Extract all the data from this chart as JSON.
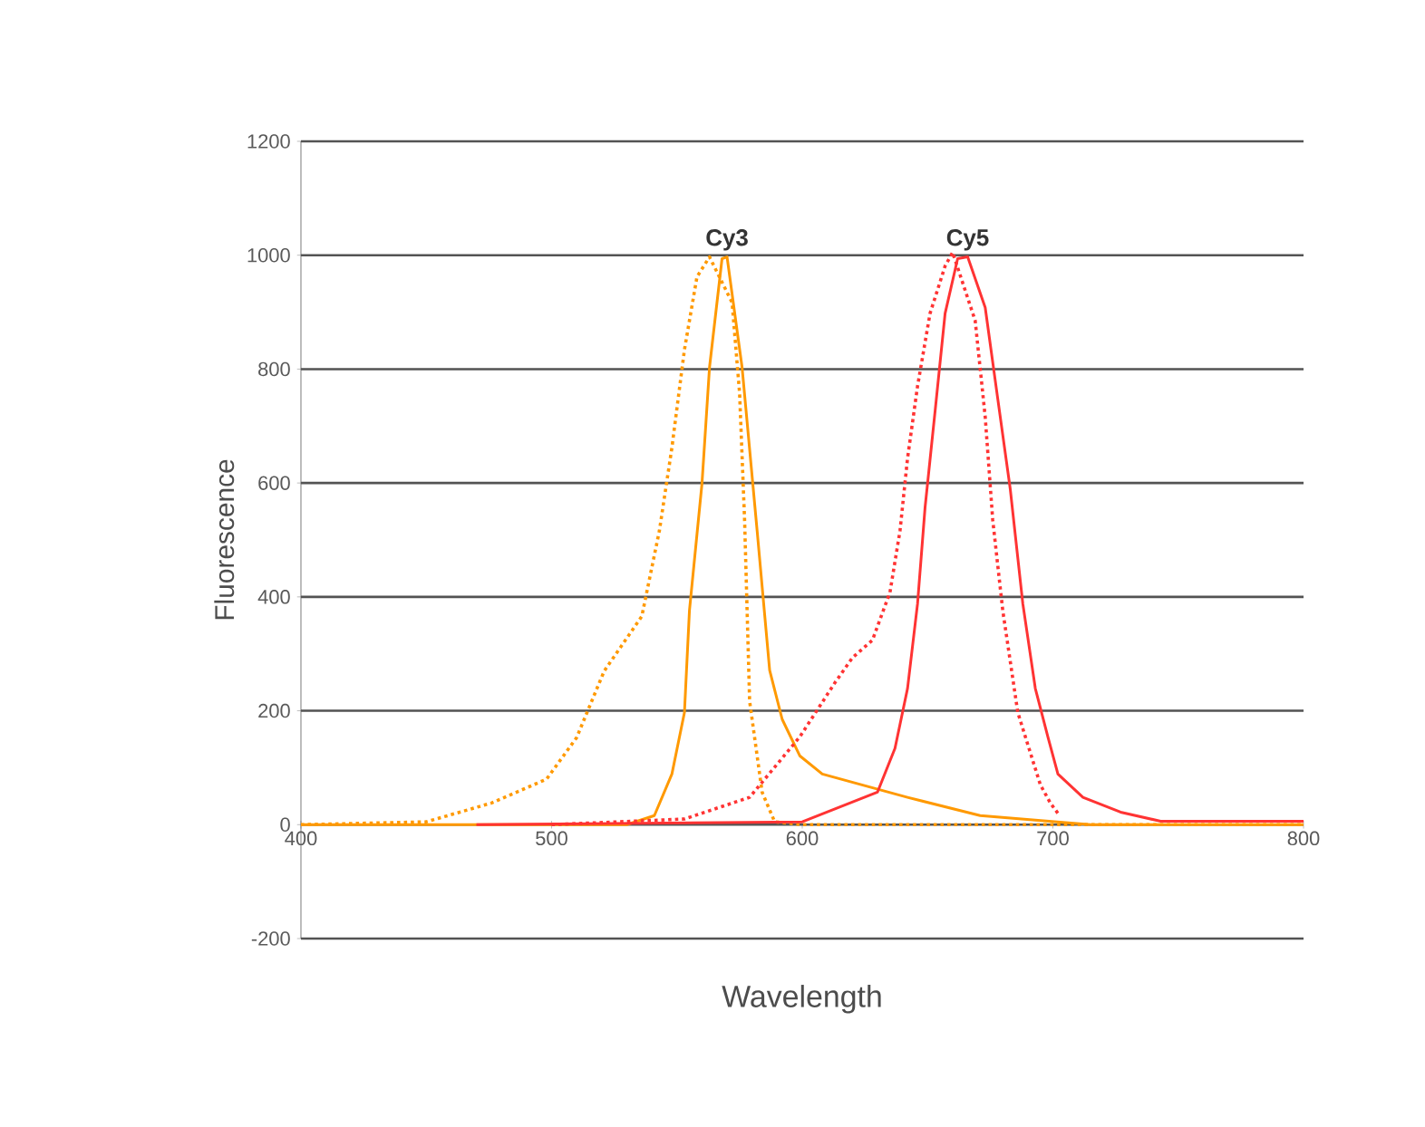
{
  "chart_data": {
    "type": "line",
    "xlabel": "Wavelength",
    "ylabel": "Fluorescence",
    "xlim": [
      400,
      800
    ],
    "xticks": [
      400,
      500,
      600,
      700,
      800
    ],
    "ylim": [
      -200,
      1200
    ],
    "yticks": [
      -200,
      0,
      200,
      400,
      600,
      800,
      1000,
      1200
    ],
    "grid": "y",
    "marker": "none",
    "annotations": [
      "Cy3",
      "Cy5"
    ],
    "series": [
      {
        "color": "#ff9900",
        "line_style": "dotted",
        "x": [
          400,
          450,
          476,
          498,
          510,
          521,
          536,
          543,
          548,
          553,
          558,
          563,
          572,
          575,
          577,
          579,
          584,
          589,
          600,
          800
        ],
        "values": [
          0,
          5,
          38,
          80,
          153,
          270,
          366,
          516,
          662,
          834,
          962,
          997,
          917,
          758,
          535,
          217,
          57,
          5,
          0,
          0
        ]
      },
      {
        "color": "#ff9900",
        "line_style": "solid",
        "x": [
          400,
          530,
          541,
          548,
          553,
          555,
          560,
          563,
          568,
          570,
          576,
          582,
          587,
          592,
          599,
          608,
          642,
          671,
          715,
          800
        ],
        "values": [
          0,
          0,
          16,
          89,
          197,
          376,
          599,
          803,
          994,
          997,
          803,
          516,
          271,
          185,
          121,
          89,
          48,
          16,
          0,
          0
        ]
      },
      {
        "color": "#ff3333",
        "line_style": "dotted",
        "x": [
          500,
          553,
          579,
          599,
          613,
          620,
          628,
          635,
          639,
          642,
          646,
          651,
          657,
          660,
          669,
          673,
          676,
          680,
          686,
          695,
          699,
          702
        ],
        "values": [
          0,
          10,
          48,
          154,
          249,
          293,
          324,
          408,
          516,
          643,
          770,
          898,
          981,
          1005,
          885,
          716,
          535,
          376,
          197,
          70,
          38,
          20
        ]
      },
      {
        "color": "#ff3333",
        "line_style": "solid",
        "x": [
          470,
          600,
          630,
          637,
          642,
          646,
          649,
          653,
          657,
          662,
          666,
          673,
          678,
          683,
          688,
          693,
          698,
          702,
          712,
          727,
          743,
          800
        ],
        "values": [
          0,
          5,
          57,
          134,
          239,
          388,
          557,
          726,
          898,
          994,
          997,
          908,
          748,
          589,
          388,
          239,
          154,
          89,
          48,
          22,
          6,
          6
        ]
      }
    ]
  }
}
